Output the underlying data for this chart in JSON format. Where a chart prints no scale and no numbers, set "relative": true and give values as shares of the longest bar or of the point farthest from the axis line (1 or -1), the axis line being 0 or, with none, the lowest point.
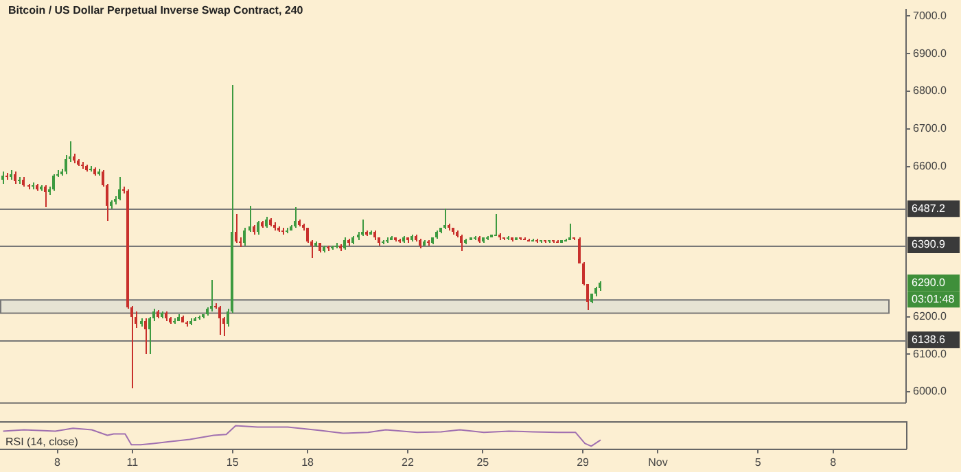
{
  "chart_data": [
    {
      "type": "candlestick",
      "title": "Bitcoin / US Dollar Perpetual Inverse Swap Contract, 240",
      "x": [
        "--10-05T20:00",
        "--10-06T00:00",
        "--10-06T04:00",
        "--10-06T08:00",
        "--10-06T12:00",
        "--10-06T16:00",
        "--10-06T20:00",
        "--10-07T00:00",
        "--10-07T04:00",
        "--10-07T08:00",
        "--10-07T12:00",
        "--10-07T16:00",
        "--10-07T20:00",
        "--10-08T00:00",
        "--10-08T04:00",
        "--10-08T08:00",
        "--10-08T12:00",
        "--10-08T16:00",
        "--10-08T20:00",
        "--10-09T00:00",
        "--10-09T04:00",
        "--10-09T08:00",
        "--10-09T12:00",
        "--10-09T16:00",
        "--10-09T20:00",
        "--10-10T00:00",
        "--10-10T04:00",
        "--10-10T08:00",
        "--10-10T12:00",
        "--10-10T16:00",
        "--10-10T20:00",
        "--10-11T00:00",
        "--10-11T04:00",
        "--10-11T08:00",
        "--10-11T12:00",
        "--10-11T16:00",
        "--10-11T20:00",
        "--10-12T00:00",
        "--10-12T04:00",
        "--10-12T08:00",
        "--10-12T12:00",
        "--10-12T16:00",
        "--10-12T20:00",
        "--10-13T00:00",
        "--10-13T04:00",
        "--10-13T08:00",
        "--10-13T12:00",
        "--10-13T16:00",
        "--10-13T20:00",
        "--10-14T00:00",
        "--10-14T04:00",
        "--10-14T08:00",
        "--10-14T12:00",
        "--10-14T16:00",
        "--10-14T20:00",
        "--10-15T00:00",
        "--10-15T04:00",
        "--10-15T08:00",
        "--10-15T12:00",
        "--10-15T16:00",
        "--10-15T20:00",
        "--10-16T00:00",
        "--10-16T04:00",
        "--10-16T08:00",
        "--10-16T12:00",
        "--10-16T16:00",
        "--10-16T20:00",
        "--10-17T00:00",
        "--10-17T04:00",
        "--10-17T08:00",
        "--10-17T12:00",
        "--10-17T16:00",
        "--10-17T20:00",
        "--10-18T00:00",
        "--10-18T04:00",
        "--10-18T08:00",
        "--10-18T12:00",
        "--10-18T16:00",
        "--10-18T20:00",
        "--10-19T00:00",
        "--10-19T04:00",
        "--10-19T08:00",
        "--10-19T12:00",
        "--10-19T16:00",
        "--10-19T20:00",
        "--10-20T00:00",
        "--10-20T04:00",
        "--10-20T08:00",
        "--10-20T12:00",
        "--10-20T16:00",
        "--10-20T20:00",
        "--10-21T00:00",
        "--10-21T04:00",
        "--10-21T08:00",
        "--10-21T12:00",
        "--10-21T16:00",
        "--10-21T20:00",
        "--10-22T00:00",
        "--10-22T04:00",
        "--10-22T08:00",
        "--10-22T12:00",
        "--10-22T16:00",
        "--10-22T20:00",
        "--10-23T00:00",
        "--10-23T04:00",
        "--10-23T08:00",
        "--10-23T12:00",
        "--10-23T16:00",
        "--10-23T20:00",
        "--10-24T00:00",
        "--10-24T04:00",
        "--10-24T08:00",
        "--10-24T12:00",
        "--10-24T16:00",
        "--10-24T20:00",
        "--10-25T00:00",
        "--10-25T04:00",
        "--10-25T08:00",
        "--10-25T12:00",
        "--10-25T16:00",
        "--10-25T20:00",
        "--10-26T00:00",
        "--10-26T04:00",
        "--10-26T08:00",
        "--10-26T12:00",
        "--10-26T16:00",
        "--10-26T20:00",
        "--10-27T00:00",
        "--10-27T04:00",
        "--10-27T08:00",
        "--10-27T12:00",
        "--10-27T16:00",
        "--10-27T20:00",
        "--10-28T00:00",
        "--10-28T04:00",
        "--10-28T08:00",
        "--10-28T12:00",
        "--10-28T16:00",
        "--10-28T20:00",
        "--10-29T00:00",
        "--10-29T04:00",
        "--10-29T08:00",
        "--10-29T12:00",
        "--10-29T16:00"
      ],
      "ohlc": [
        [
          6565,
          6585,
          6555,
          6575
        ],
        [
          6575,
          6582,
          6565,
          6570
        ],
        [
          6570,
          6590,
          6565,
          6580
        ],
        [
          6580,
          6585,
          6555,
          6560
        ],
        [
          6560,
          6572,
          6555,
          6565
        ],
        [
          6565,
          6570,
          6545,
          6550
        ],
        [
          6550,
          6555,
          6540,
          6545
        ],
        [
          6545,
          6558,
          6540,
          6550
        ],
        [
          6550,
          6555,
          6535,
          6540
        ],
        [
          6540,
          6550,
          6535,
          6545
        ],
        [
          6545,
          6548,
          6490,
          6530
        ],
        [
          6530,
          6545,
          6525,
          6540
        ],
        [
          6540,
          6578,
          6535,
          6575
        ],
        [
          6575,
          6590,
          6570,
          6580
        ],
        [
          6580,
          6595,
          6575,
          6585
        ],
        [
          6585,
          6630,
          6580,
          6620
        ],
        [
          6620,
          6665,
          6612,
          6625
        ],
        [
          6625,
          6635,
          6608,
          6615
        ],
        [
          6615,
          6620,
          6600,
          6605
        ],
        [
          6605,
          6612,
          6595,
          6600
        ],
        [
          6600,
          6605,
          6585,
          6590
        ],
        [
          6590,
          6600,
          6585,
          6595
        ],
        [
          6595,
          6598,
          6575,
          6580
        ],
        [
          6580,
          6592,
          6575,
          6585
        ],
        [
          6585,
          6590,
          6545,
          6550
        ],
        [
          6550,
          6555,
          6454,
          6495
        ],
        [
          6495,
          6510,
          6488,
          6505
        ],
        [
          6505,
          6520,
          6500,
          6515
        ],
        [
          6515,
          6570,
          6510,
          6540
        ],
        [
          6540,
          6545,
          6528,
          6535
        ],
        [
          6535,
          6540,
          6220,
          6225
        ],
        [
          6225,
          6230,
          6010,
          6200
        ],
        [
          6200,
          6215,
          6170,
          6180
        ],
        [
          6180,
          6195,
          6175,
          6190
        ],
        [
          6190,
          6195,
          6100,
          6165
        ],
        [
          6165,
          6200,
          6100,
          6195
        ],
        [
          6195,
          6220,
          6190,
          6215
        ],
        [
          6215,
          6218,
          6195,
          6200
        ],
        [
          6200,
          6212,
          6195,
          6210
        ],
        [
          6210,
          6212,
          6190,
          6195
        ],
        [
          6195,
          6198,
          6180,
          6185
        ],
        [
          6185,
          6195,
          6182,
          6190
        ],
        [
          6190,
          6205,
          6188,
          6200
        ],
        [
          6200,
          6203,
          6183,
          6185
        ],
        [
          6185,
          6190,
          6175,
          6180
        ],
        [
          6180,
          6195,
          6178,
          6190
        ],
        [
          6190,
          6198,
          6187,
          6195
        ],
        [
          6195,
          6202,
          6192,
          6200
        ],
        [
          6200,
          6208,
          6197,
          6205
        ],
        [
          6205,
          6225,
          6202,
          6220
        ],
        [
          6220,
          6296,
          6215,
          6230
        ],
        [
          6230,
          6235,
          6220,
          6225
        ],
        [
          6225,
          6228,
          6150,
          6195
        ],
        [
          6195,
          6200,
          6148,
          6180
        ],
        [
          6180,
          6220,
          6175,
          6215
        ],
        [
          6215,
          6817,
          6210,
          6425
        ],
        [
          6425,
          6472,
          6395,
          6400
        ],
        [
          6400,
          6410,
          6385,
          6395
        ],
        [
          6395,
          6435,
          6390,
          6430
        ],
        [
          6430,
          6496,
          6425,
          6440
        ],
        [
          6440,
          6445,
          6420,
          6425
        ],
        [
          6425,
          6455,
          6420,
          6450
        ],
        [
          6450,
          6455,
          6435,
          6440
        ],
        [
          6440,
          6465,
          6438,
          6460
        ],
        [
          6460,
          6462,
          6440,
          6445
        ],
        [
          6445,
          6450,
          6430,
          6435
        ],
        [
          6435,
          6440,
          6425,
          6430
        ],
        [
          6430,
          6435,
          6420,
          6425
        ],
        [
          6425,
          6435,
          6422,
          6430
        ],
        [
          6430,
          6445,
          6428,
          6440
        ],
        [
          6440,
          6490,
          6435,
          6455
        ],
        [
          6455,
          6460,
          6440,
          6445
        ],
        [
          6445,
          6448,
          6430,
          6435
        ],
        [
          6435,
          6438,
          6395,
          6400
        ],
        [
          6400,
          6405,
          6356,
          6390
        ],
        [
          6390,
          6400,
          6385,
          6395
        ],
        [
          6395,
          6398,
          6370,
          6375
        ],
        [
          6375,
          6390,
          6372,
          6385
        ],
        [
          6385,
          6388,
          6375,
          6380
        ],
        [
          6380,
          6390,
          6378,
          6385
        ],
        [
          6385,
          6395,
          6382,
          6390
        ],
        [
          6390,
          6392,
          6375,
          6380
        ],
        [
          6380,
          6410,
          6378,
          6405
        ],
        [
          6405,
          6408,
          6390,
          6395
        ],
        [
          6395,
          6415,
          6392,
          6410
        ],
        [
          6410,
          6425,
          6405,
          6420
        ],
        [
          6420,
          6460,
          6415,
          6425
        ],
        [
          6425,
          6428,
          6415,
          6420
        ],
        [
          6420,
          6430,
          6418,
          6425
        ],
        [
          6425,
          6428,
          6405,
          6410
        ],
        [
          6410,
          6412,
          6390,
          6395
        ],
        [
          6395,
          6405,
          6392,
          6400
        ],
        [
          6400,
          6410,
          6398,
          6405
        ],
        [
          6405,
          6415,
          6402,
          6410
        ],
        [
          6410,
          6412,
          6400,
          6405
        ],
        [
          6405,
          6408,
          6395,
          6400
        ],
        [
          6400,
          6415,
          6398,
          6410
        ],
        [
          6410,
          6412,
          6398,
          6402
        ],
        [
          6402,
          6420,
          6400,
          6415
        ],
        [
          6415,
          6418,
          6400,
          6405
        ],
        [
          6405,
          6408,
          6380,
          6390
        ],
        [
          6390,
          6405,
          6388,
          6400
        ],
        [
          6400,
          6402,
          6390,
          6395
        ],
        [
          6395,
          6412,
          6392,
          6410
        ],
        [
          6410,
          6428,
          6408,
          6425
        ],
        [
          6425,
          6438,
          6422,
          6435
        ],
        [
          6435,
          6489,
          6432,
          6445
        ],
        [
          6445,
          6448,
          6430,
          6435
        ],
        [
          6435,
          6438,
          6420,
          6425
        ],
        [
          6425,
          6428,
          6410,
          6415
        ],
        [
          6415,
          6418,
          6373,
          6395
        ],
        [
          6395,
          6408,
          6392,
          6405
        ],
        [
          6405,
          6412,
          6402,
          6410
        ],
        [
          6410,
          6415,
          6405,
          6412
        ],
        [
          6412,
          6415,
          6395,
          6400
        ],
        [
          6400,
          6412,
          6398,
          6410
        ],
        [
          6410,
          6415,
          6405,
          6412
        ],
        [
          6412,
          6420,
          6410,
          6418
        ],
        [
          6418,
          6472,
          6415,
          6420
        ],
        [
          6420,
          6422,
          6405,
          6410
        ],
        [
          6410,
          6412,
          6403,
          6408
        ],
        [
          6408,
          6413,
          6405,
          6410
        ],
        [
          6410,
          6412,
          6400,
          6405
        ],
        [
          6405,
          6412,
          6403,
          6410
        ],
        [
          6410,
          6412,
          6405,
          6408
        ],
        [
          6408,
          6410,
          6402,
          6405
        ],
        [
          6405,
          6407,
          6400,
          6403
        ],
        [
          6403,
          6408,
          6400,
          6405
        ],
        [
          6405,
          6407,
          6398,
          6400
        ],
        [
          6400,
          6404,
          6397,
          6402
        ],
        [
          6402,
          6404,
          6398,
          6400
        ],
        [
          6400,
          6405,
          6398,
          6403
        ],
        [
          6403,
          6405,
          6397,
          6400
        ],
        [
          6400,
          6402,
          6395,
          6398
        ],
        [
          6398,
          6404,
          6396,
          6402
        ],
        [
          6402,
          6408,
          6400,
          6405
        ],
        [
          6405,
          6447,
          6403,
          6410
        ],
        [
          6410,
          6412,
          6403,
          6408
        ],
        [
          6408,
          6410,
          6340,
          6342
        ],
        [
          6342,
          6345,
          6283,
          6285
        ],
        [
          6285,
          6288,
          6218,
          6240
        ],
        [
          6240,
          6262,
          6235,
          6260
        ],
        [
          6260,
          6278,
          6255,
          6275
        ],
        [
          6275,
          6295,
          6270,
          6290
        ]
      ],
      "xlim": [
        "--10-05T17:00",
        "--11-10T22:00"
      ],
      "ylim": [
        5972,
        7018
      ],
      "yticks": [
        {
          "value": 6000,
          "label": "6000.0"
        },
        {
          "value": 6100,
          "label": "6100.0"
        },
        {
          "value": 6200,
          "label": "6200.0"
        },
        {
          "value": 6600,
          "label": "6600.0"
        },
        {
          "value": 6700,
          "label": "6700.0"
        },
        {
          "value": 6800,
          "label": "6800.0"
        },
        {
          "value": 6900,
          "label": "6900.0"
        },
        {
          "value": 7000,
          "label": "7000.0"
        }
      ],
      "tick_labels": "y",
      "ref_lines": [
        {
          "axis": "y",
          "value": 6487.2,
          "label": "6487.2"
        },
        {
          "axis": "y",
          "value": 6390.9,
          "label": "6390.9"
        },
        {
          "axis": "y",
          "value": 6138.6,
          "label": "6138.6"
        }
      ],
      "bands": [
        {
          "axis": "y",
          "from": 6211,
          "to": 6246,
          "color": "#e6e3d3"
        }
      ],
      "annotations": [
        "6290.0",
        "03:01:48"
      ]
    },
    {
      "type": "line",
      "title": "RSI (14, close)",
      "relative": true,
      "color": "#a070b0",
      "x": [
        "--10-05T20:00",
        "--10-06T16:00",
        "--10-07T22:00",
        "--10-08T15:00",
        "--10-09T09:00",
        "--10-10T00:00",
        "--10-10T06:00",
        "--10-10T17:00",
        "--10-10T23:00",
        "--10-11T08:00",
        "--10-11T20:00",
        "--10-12T13:00",
        "--10-13T07:00",
        "--10-14T06:00",
        "--10-14T18:00",
        "--10-15T03:00",
        "--10-16T00:00",
        "--10-17T05:00",
        "--10-18T11:00",
        "--10-19T10:00",
        "--10-20T10:00",
        "--10-21T03:00",
        "--10-22T09:00",
        "--10-23T08:00",
        "--10-24T02:00",
        "--10-25T01:00",
        "--10-26T01:00",
        "--10-27T00:00",
        "--10-28T00:00",
        "--10-28T17:00",
        "--10-29T02:00",
        "--10-29T08:00",
        "--10-29T17:00"
      ],
      "values": [
        0.73,
        0.8,
        0.73,
        0.87,
        0.8,
        0.53,
        0.6,
        0.6,
        0.07,
        0.07,
        0.13,
        0.23,
        0.33,
        0.53,
        0.57,
        1,
        0.93,
        0.93,
        0.77,
        0.63,
        0.67,
        0.8,
        0.67,
        0.7,
        0.8,
        0.67,
        0.73,
        0.7,
        0.67,
        0.67,
        0.13,
        0,
        0.3
      ],
      "xlim": [
        "--10-05T17:00",
        "--11-10T22:00"
      ],
      "xticks": [
        {
          "value": "--10-08",
          "label": "8"
        },
        {
          "value": "--10-11",
          "label": "11"
        },
        {
          "value": "--10-15",
          "label": "15"
        },
        {
          "value": "--10-18",
          "label": "18"
        },
        {
          "value": "--10-22",
          "label": "22"
        },
        {
          "value": "--10-25",
          "label": "25"
        },
        {
          "value": "--10-29",
          "label": "29"
        },
        {
          "value": "--11-01",
          "label": "Nov"
        },
        {
          "value": "--11-05",
          "label": "5"
        },
        {
          "value": "--11-08",
          "label": "8"
        }
      ],
      "tick_labels": "x"
    }
  ]
}
